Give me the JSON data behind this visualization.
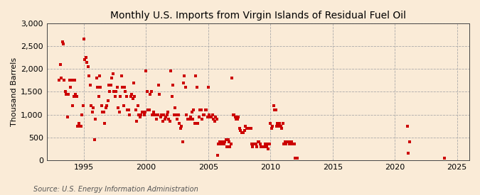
{
  "title": "Monthly U.S. Imports from Virgin Islands of Residual Fuel Oil",
  "ylabel": "Thousand Barrels",
  "source": "Source: U.S. Energy Information Administration",
  "background_color": "#faebd7",
  "marker_color": "#cc0000",
  "xlim": [
    1992.0,
    2026.0
  ],
  "ylim": [
    0,
    3000
  ],
  "yticks": [
    0,
    500,
    1000,
    1500,
    2000,
    2500,
    3000
  ],
  "xticks": [
    1995,
    2000,
    2005,
    2010,
    2015,
    2020,
    2025
  ],
  "data_xy": [
    [
      1993.0,
      1750
    ],
    [
      1993.08,
      2100
    ],
    [
      1993.17,
      1800
    ],
    [
      1993.25,
      2600
    ],
    [
      1993.33,
      2550
    ],
    [
      1993.42,
      1750
    ],
    [
      1993.5,
      1500
    ],
    [
      1993.58,
      1450
    ],
    [
      1993.67,
      950
    ],
    [
      1993.75,
      1450
    ],
    [
      1993.83,
      1750
    ],
    [
      1993.92,
      1600
    ],
    [
      1994.0,
      1750
    ],
    [
      1994.08,
      1200
    ],
    [
      1994.17,
      1400
    ],
    [
      1994.25,
      1750
    ],
    [
      1994.33,
      1450
    ],
    [
      1994.42,
      1400
    ],
    [
      1994.5,
      750
    ],
    [
      1994.58,
      800
    ],
    [
      1994.67,
      750
    ],
    [
      1994.75,
      750
    ],
    [
      1994.83,
      1000
    ],
    [
      1994.92,
      1200
    ],
    [
      1995.0,
      2650
    ],
    [
      1995.08,
      2200
    ],
    [
      1995.17,
      2250
    ],
    [
      1995.25,
      2150
    ],
    [
      1995.33,
      2050
    ],
    [
      1995.42,
      1850
    ],
    [
      1995.5,
      1650
    ],
    [
      1995.58,
      1200
    ],
    [
      1995.67,
      1050
    ],
    [
      1995.75,
      1150
    ],
    [
      1995.83,
      450
    ],
    [
      1995.92,
      900
    ],
    [
      1996.0,
      1800
    ],
    [
      1996.08,
      1600
    ],
    [
      1996.17,
      1400
    ],
    [
      1996.25,
      1850
    ],
    [
      1996.33,
      1600
    ],
    [
      1996.42,
      1200
    ],
    [
      1996.5,
      1050
    ],
    [
      1996.58,
      1050
    ],
    [
      1996.67,
      800
    ],
    [
      1996.75,
      1150
    ],
    [
      1996.83,
      1200
    ],
    [
      1996.92,
      1300
    ],
    [
      1997.0,
      1650
    ],
    [
      1997.08,
      1500
    ],
    [
      1997.17,
      1650
    ],
    [
      1997.25,
      1800
    ],
    [
      1997.33,
      1900
    ],
    [
      1997.42,
      1500
    ],
    [
      1997.5,
      1400
    ],
    [
      1997.58,
      1500
    ],
    [
      1997.67,
      1600
    ],
    [
      1997.75,
      1150
    ],
    [
      1997.83,
      1050
    ],
    [
      1997.92,
      1400
    ],
    [
      1998.0,
      1850
    ],
    [
      1998.08,
      1600
    ],
    [
      1998.17,
      1200
    ],
    [
      1998.25,
      1600
    ],
    [
      1998.33,
      1500
    ],
    [
      1998.42,
      1400
    ],
    [
      1998.5,
      1100
    ],
    [
      1998.58,
      1100
    ],
    [
      1998.67,
      1000
    ],
    [
      1998.75,
      1400
    ],
    [
      1998.83,
      1450
    ],
    [
      1998.92,
      1350
    ],
    [
      1999.0,
      1700
    ],
    [
      1999.08,
      1400
    ],
    [
      1999.17,
      1100
    ],
    [
      1999.25,
      850
    ],
    [
      1999.33,
      1200
    ],
    [
      1999.42,
      1000
    ],
    [
      1999.5,
      950
    ],
    [
      1999.58,
      1000
    ],
    [
      1999.67,
      1050
    ],
    [
      1999.75,
      1050
    ],
    [
      1999.83,
      1000
    ],
    [
      1999.92,
      1050
    ],
    [
      2000.0,
      1950
    ],
    [
      2000.08,
      1500
    ],
    [
      2000.17,
      1100
    ],
    [
      2000.25,
      1100
    ],
    [
      2000.33,
      1450
    ],
    [
      2000.42,
      1500
    ],
    [
      2000.5,
      1000
    ],
    [
      2000.58,
      1050
    ],
    [
      2000.67,
      1000
    ],
    [
      2000.75,
      1000
    ],
    [
      2000.83,
      900
    ],
    [
      2000.92,
      1000
    ],
    [
      2001.0,
      1650
    ],
    [
      2001.08,
      1450
    ],
    [
      2001.17,
      950
    ],
    [
      2001.25,
      1000
    ],
    [
      2001.33,
      850
    ],
    [
      2001.42,
      1000
    ],
    [
      2001.5,
      900
    ],
    [
      2001.58,
      950
    ],
    [
      2001.67,
      1000
    ],
    [
      2001.75,
      1050
    ],
    [
      2001.83,
      900
    ],
    [
      2001.92,
      850
    ],
    [
      2002.0,
      1950
    ],
    [
      2002.08,
      1400
    ],
    [
      2002.17,
      1650
    ],
    [
      2002.25,
      1000
    ],
    [
      2002.33,
      1150
    ],
    [
      2002.42,
      1000
    ],
    [
      2002.5,
      900
    ],
    [
      2002.58,
      1000
    ],
    [
      2002.67,
      800
    ],
    [
      2002.75,
      700
    ],
    [
      2002.83,
      750
    ],
    [
      2002.92,
      400
    ],
    [
      2003.0,
      1700
    ],
    [
      2003.08,
      1850
    ],
    [
      2003.17,
      1600
    ],
    [
      2003.25,
      1000
    ],
    [
      2003.33,
      900
    ],
    [
      2003.42,
      900
    ],
    [
      2003.5,
      900
    ],
    [
      2003.58,
      950
    ],
    [
      2003.67,
      1050
    ],
    [
      2003.75,
      900
    ],
    [
      2003.83,
      1100
    ],
    [
      2003.92,
      800
    ],
    [
      2004.0,
      1850
    ],
    [
      2004.08,
      1600
    ],
    [
      2004.17,
      800
    ],
    [
      2004.25,
      950
    ],
    [
      2004.33,
      1100
    ],
    [
      2004.42,
      1100
    ],
    [
      2004.5,
      900
    ],
    [
      2004.58,
      1000
    ],
    [
      2004.67,
      1000
    ],
    [
      2004.75,
      1100
    ],
    [
      2004.83,
      1100
    ],
    [
      2004.92,
      950
    ],
    [
      2005.0,
      1600
    ],
    [
      2005.08,
      1000
    ],
    [
      2005.17,
      950
    ],
    [
      2005.25,
      950
    ],
    [
      2005.33,
      1000
    ],
    [
      2005.42,
      900
    ],
    [
      2005.5,
      850
    ],
    [
      2005.58,
      950
    ],
    [
      2005.67,
      900
    ],
    [
      2005.75,
      100
    ],
    [
      2005.83,
      350
    ],
    [
      2005.92,
      400
    ],
    [
      2006.0,
      350
    ],
    [
      2006.08,
      400
    ],
    [
      2006.17,
      350
    ],
    [
      2006.25,
      350
    ],
    [
      2006.33,
      400
    ],
    [
      2006.42,
      450
    ],
    [
      2006.5,
      300
    ],
    [
      2006.58,
      450
    ],
    [
      2006.67,
      400
    ],
    [
      2006.75,
      300
    ],
    [
      2006.83,
      350
    ],
    [
      2006.92,
      1800
    ],
    [
      2007.0,
      1000
    ],
    [
      2007.08,
      1000
    ],
    [
      2007.17,
      950
    ],
    [
      2007.25,
      900
    ],
    [
      2007.33,
      900
    ],
    [
      2007.42,
      950
    ],
    [
      2007.5,
      700
    ],
    [
      2007.58,
      650
    ],
    [
      2007.67,
      600
    ],
    [
      2007.75,
      600
    ],
    [
      2007.83,
      600
    ],
    [
      2007.92,
      650
    ],
    [
      2008.0,
      750
    ],
    [
      2008.08,
      700
    ],
    [
      2008.17,
      700
    ],
    [
      2008.25,
      700
    ],
    [
      2008.33,
      700
    ],
    [
      2008.42,
      700
    ],
    [
      2008.5,
      350
    ],
    [
      2008.58,
      300
    ],
    [
      2008.67,
      350
    ],
    [
      2008.75,
      350
    ],
    [
      2008.83,
      350
    ],
    [
      2008.92,
      300
    ],
    [
      2009.0,
      400
    ],
    [
      2009.08,
      400
    ],
    [
      2009.17,
      350
    ],
    [
      2009.25,
      300
    ],
    [
      2009.33,
      300
    ],
    [
      2009.42,
      300
    ],
    [
      2009.5,
      300
    ],
    [
      2009.58,
      350
    ],
    [
      2009.67,
      300
    ],
    [
      2009.75,
      350
    ],
    [
      2009.83,
      250
    ],
    [
      2009.92,
      350
    ],
    [
      2010.0,
      800
    ],
    [
      2010.08,
      700
    ],
    [
      2010.17,
      750
    ],
    [
      2010.25,
      1200
    ],
    [
      2010.33,
      1100
    ],
    [
      2010.42,
      1100
    ],
    [
      2010.5,
      750
    ],
    [
      2010.58,
      800
    ],
    [
      2010.67,
      750
    ],
    [
      2010.75,
      800
    ],
    [
      2010.83,
      750
    ],
    [
      2010.92,
      700
    ],
    [
      2011.0,
      800
    ],
    [
      2011.08,
      350
    ],
    [
      2011.17,
      400
    ],
    [
      2011.25,
      350
    ],
    [
      2011.33,
      400
    ],
    [
      2011.42,
      400
    ],
    [
      2011.5,
      350
    ],
    [
      2011.58,
      400
    ],
    [
      2011.67,
      400
    ],
    [
      2011.75,
      350
    ],
    [
      2011.83,
      350
    ],
    [
      2011.92,
      350
    ],
    [
      2012.0,
      50
    ],
    [
      2012.08,
      50
    ],
    [
      2012.17,
      50
    ],
    [
      2021.0,
      750
    ],
    [
      2021.08,
      150
    ],
    [
      2021.17,
      400
    ],
    [
      2024.0,
      50
    ]
  ]
}
